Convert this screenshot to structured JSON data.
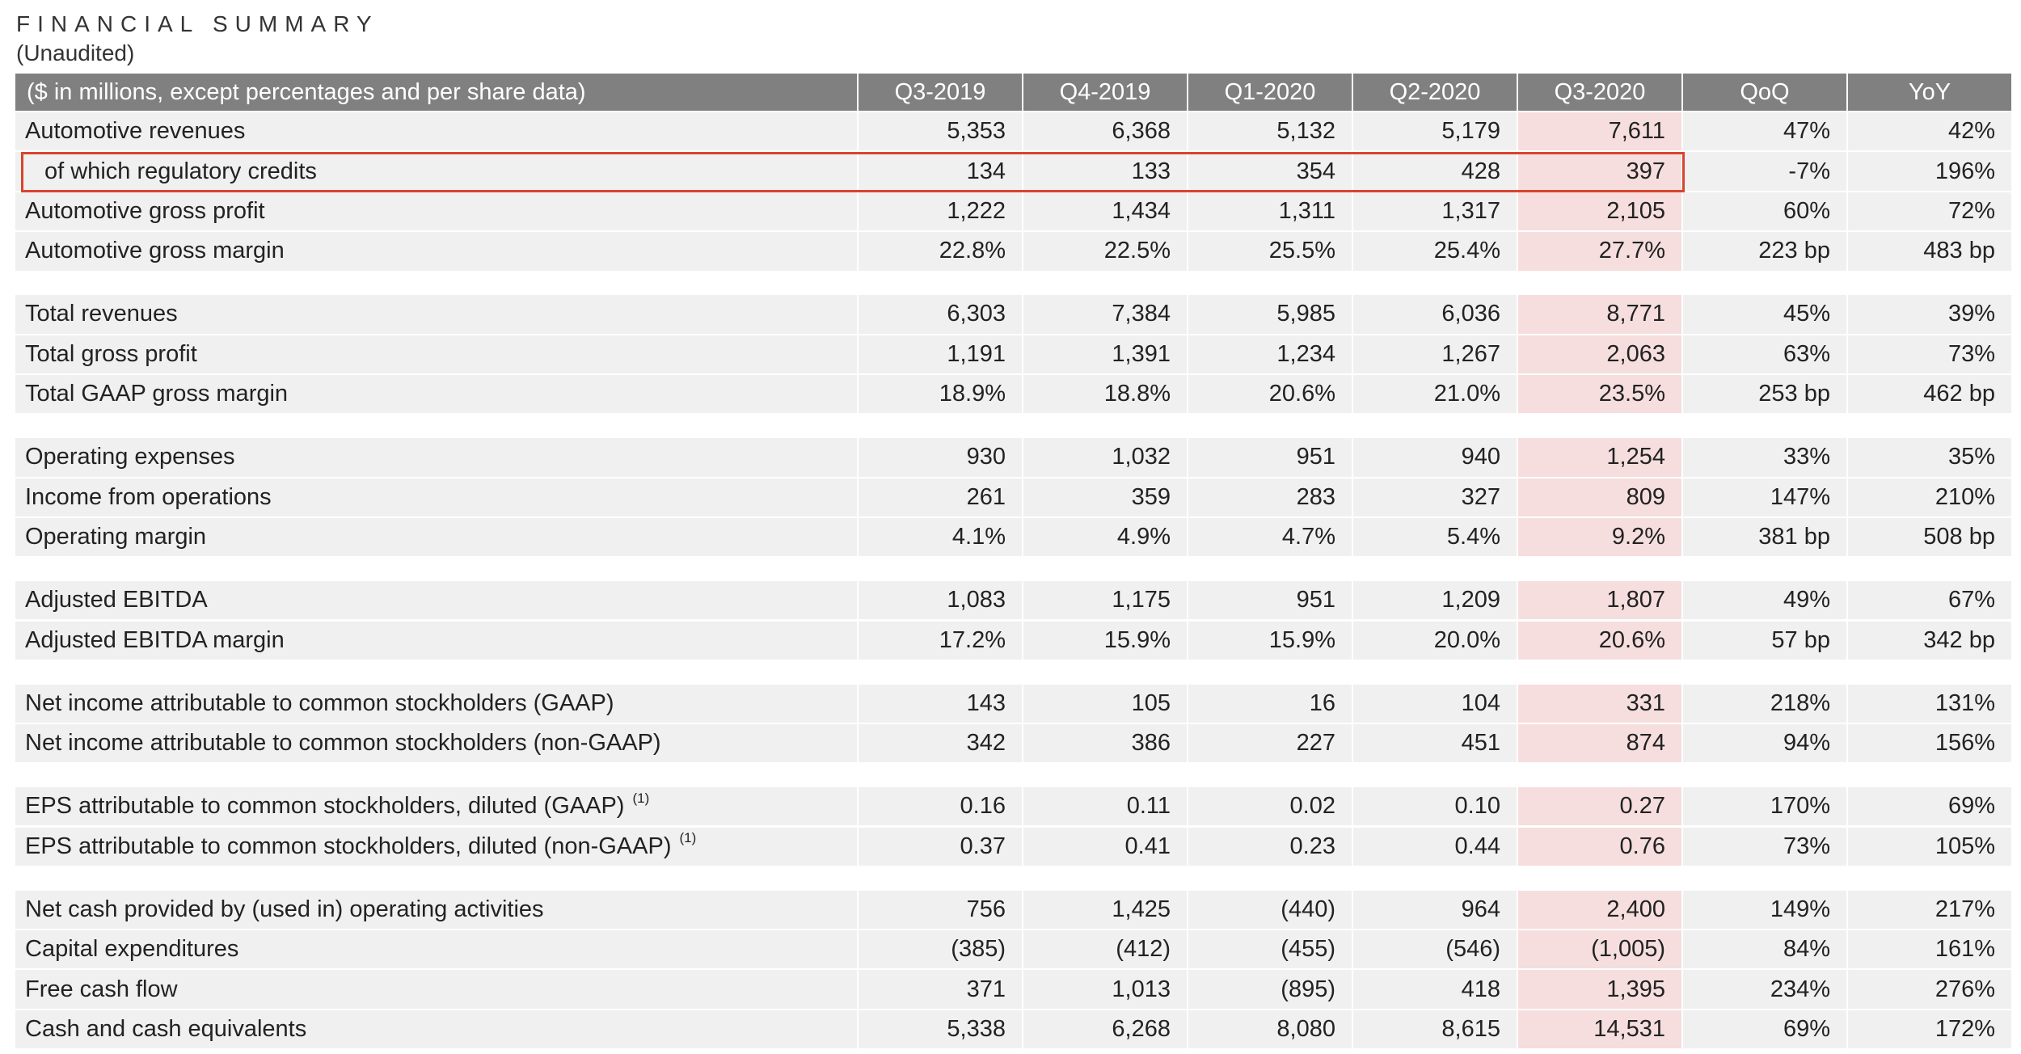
{
  "header": {
    "title": "FINANCIAL SUMMARY",
    "subtitle": "(Unaudited)"
  },
  "table": {
    "columns": [
      "($ in millions, except percentages and per share data)",
      "Q3-2019",
      "Q4-2019",
      "Q1-2020",
      "Q2-2020",
      "Q3-2020",
      "QoQ",
      "YoY"
    ],
    "groups": [
      [
        {
          "label": "Automotive revenues",
          "cells": [
            "5,353",
            "6,368",
            "5,132",
            "5,179",
            "7,611",
            "47%",
            "42%"
          ]
        },
        {
          "label": "of which regulatory credits",
          "cells": [
            "134",
            "133",
            "354",
            "428",
            "397",
            "-7%",
            "196%"
          ]
        },
        {
          "label": "Automotive gross profit",
          "cells": [
            "1,222",
            "1,434",
            "1,311",
            "1,317",
            "2,105",
            "60%",
            "72%"
          ]
        },
        {
          "label": "Automotive gross margin",
          "cells": [
            "22.8%",
            "22.5%",
            "25.5%",
            "25.4%",
            "27.7%",
            "223 bp",
            "483 bp"
          ]
        }
      ],
      [
        {
          "label": "Total revenues",
          "cells": [
            "6,303",
            "7,384",
            "5,985",
            "6,036",
            "8,771",
            "45%",
            "39%"
          ]
        },
        {
          "label": "Total gross profit",
          "cells": [
            "1,191",
            "1,391",
            "1,234",
            "1,267",
            "2,063",
            "63%",
            "73%"
          ]
        },
        {
          "label": "Total GAAP gross margin",
          "cells": [
            "18.9%",
            "18.8%",
            "20.6%",
            "21.0%",
            "23.5%",
            "253 bp",
            "462 bp"
          ]
        }
      ],
      [
        {
          "label": "Operating expenses",
          "cells": [
            "930",
            "1,032",
            "951",
            "940",
            "1,254",
            "33%",
            "35%"
          ]
        },
        {
          "label": "Income from operations",
          "cells": [
            "261",
            "359",
            "283",
            "327",
            "809",
            "147%",
            "210%"
          ]
        },
        {
          "label": "Operating margin",
          "cells": [
            "4.1%",
            "4.9%",
            "4.7%",
            "5.4%",
            "9.2%",
            "381 bp",
            "508 bp"
          ]
        }
      ],
      [
        {
          "label": "Adjusted EBITDA",
          "cells": [
            "1,083",
            "1,175",
            "951",
            "1,209",
            "1,807",
            "49%",
            "67%"
          ]
        },
        {
          "label": "Adjusted EBITDA margin",
          "cells": [
            "17.2%",
            "15.9%",
            "15.9%",
            "20.0%",
            "20.6%",
            "57 bp",
            "342 bp"
          ]
        }
      ],
      [
        {
          "label": "Net income attributable to common stockholders (GAAP)",
          "cells": [
            "143",
            "105",
            "16",
            "104",
            "331",
            "218%",
            "131%"
          ]
        },
        {
          "label": "Net income attributable to common stockholders (non-GAAP)",
          "cells": [
            "342",
            "386",
            "227",
            "451",
            "874",
            "94%",
            "156%"
          ]
        }
      ],
      [
        {
          "label": "EPS attributable to common stockholders, diluted (GAAP)",
          "note": "(1)",
          "cells": [
            "0.16",
            "0.11",
            "0.02",
            "0.10",
            "0.27",
            "170%",
            "69%"
          ]
        },
        {
          "label": "EPS attributable to common stockholders, diluted (non-GAAP)",
          "note": "(1)",
          "cells": [
            "0.37",
            "0.41",
            "0.23",
            "0.44",
            "0.76",
            "73%",
            "105%"
          ]
        }
      ],
      [
        {
          "label": "Net cash provided by (used in) operating activities",
          "cells": [
            "756",
            "1,425",
            "(440)",
            "964",
            "2,400",
            "149%",
            "217%"
          ]
        },
        {
          "label": "Capital expenditures",
          "cells": [
            "(385)",
            "(412)",
            "(455)",
            "(546)",
            "(1,005)",
            "84%",
            "161%"
          ]
        },
        {
          "label": "Free cash flow",
          "cells": [
            "371",
            "1,013",
            "(895)",
            "418",
            "1,395",
            "234%",
            "276%"
          ]
        },
        {
          "label": "Cash and cash equivalents",
          "cells": [
            "5,338",
            "6,268",
            "8,080",
            "8,615",
            "14,531",
            "69%",
            "172%"
          ]
        }
      ]
    ]
  }
}
